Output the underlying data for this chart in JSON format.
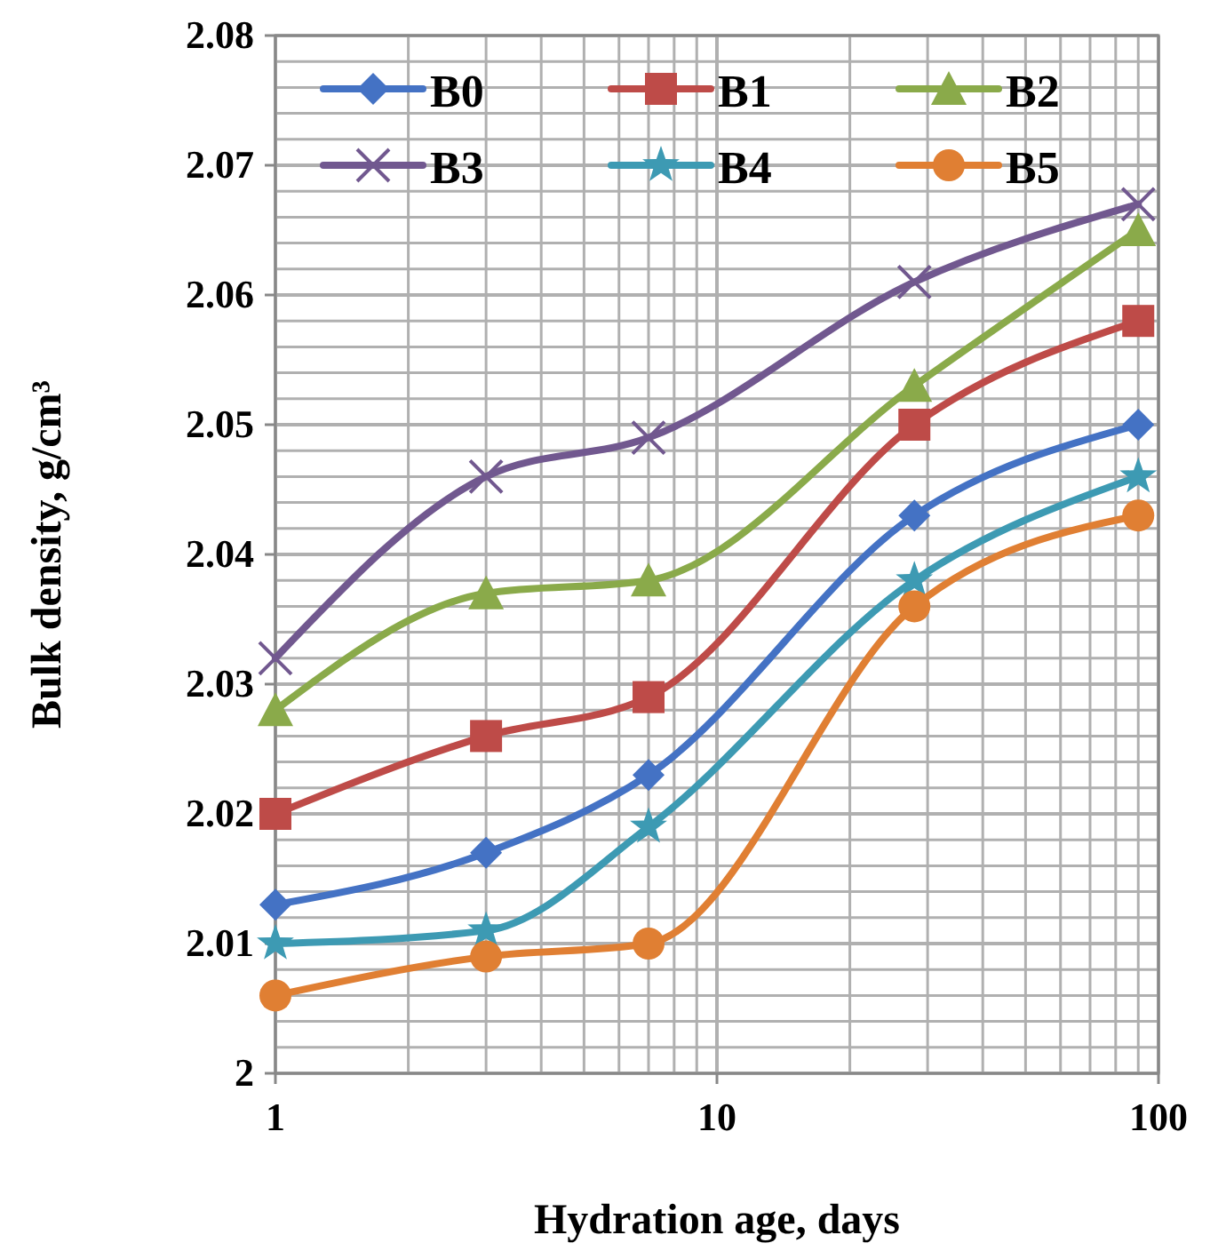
{
  "chart_data": {
    "type": "line",
    "xlabel": "Hydration age, days",
    "ylabel": "Bulk density, g/cm³",
    "log": "x",
    "x": [
      1,
      3,
      7,
      28,
      90
    ],
    "xlim": [
      1,
      100
    ],
    "xticks": [
      1,
      {
        "value": 2,
        "label": null
      },
      {
        "value": 3,
        "label": null
      },
      {
        "value": 4,
        "label": null
      },
      {
        "value": 5,
        "label": null
      },
      {
        "value": 6,
        "label": null
      },
      {
        "value": 7,
        "label": null
      },
      {
        "value": 8,
        "label": null
      },
      {
        "value": 9,
        "label": null
      },
      10,
      {
        "value": 20,
        "label": null
      },
      {
        "value": 30,
        "label": null
      },
      {
        "value": 40,
        "label": null
      },
      {
        "value": 50,
        "label": null
      },
      {
        "value": 60,
        "label": null
      },
      {
        "value": 70,
        "label": null
      },
      {
        "value": 80,
        "label": null
      },
      {
        "value": 90,
        "label": null
      },
      100
    ],
    "ylim": [
      2,
      2.08
    ],
    "yticks": [
      2,
      {
        "value": 2.002,
        "label": null
      },
      {
        "value": 2.004,
        "label": null
      },
      {
        "value": 2.006,
        "label": null
      },
      {
        "value": 2.008,
        "label": null
      },
      2.01,
      {
        "value": 2.012,
        "label": null
      },
      {
        "value": 2.014,
        "label": null
      },
      {
        "value": 2.016,
        "label": null
      },
      {
        "value": 2.018,
        "label": null
      },
      2.02,
      {
        "value": 2.022,
        "label": null
      },
      {
        "value": 2.024,
        "label": null
      },
      {
        "value": 2.026,
        "label": null
      },
      {
        "value": 2.028,
        "label": null
      },
      2.03,
      {
        "value": 2.032,
        "label": null
      },
      {
        "value": 2.034,
        "label": null
      },
      {
        "value": 2.036,
        "label": null
      },
      {
        "value": 2.038,
        "label": null
      },
      2.04,
      {
        "value": 2.042,
        "label": null
      },
      {
        "value": 2.044,
        "label": null
      },
      {
        "value": 2.046,
        "label": null
      },
      {
        "value": 2.048,
        "label": null
      },
      2.05,
      {
        "value": 2.052,
        "label": null
      },
      {
        "value": 2.054,
        "label": null
      },
      {
        "value": 2.056,
        "label": null
      },
      {
        "value": 2.058,
        "label": null
      },
      2.06,
      {
        "value": 2.062,
        "label": null
      },
      {
        "value": 2.064,
        "label": null
      },
      {
        "value": 2.066,
        "label": null
      },
      {
        "value": 2.068,
        "label": null
      },
      2.07,
      {
        "value": 2.072,
        "label": null
      },
      {
        "value": 2.074,
        "label": null
      },
      {
        "value": 2.076,
        "label": null
      },
      {
        "value": 2.078,
        "label": null
      },
      2.08
    ],
    "grid": true,
    "legend": "top",
    "line_style": "solid",
    "series": [
      {
        "name": "B0",
        "color": "#4472c4",
        "marker": "diamond",
        "values": [
          2.013,
          2.017,
          2.023,
          2.043,
          2.05
        ]
      },
      {
        "name": "B1",
        "color": "#be4b48",
        "marker": "square",
        "values": [
          2.02,
          2.026,
          2.029,
          2.05,
          2.058
        ]
      },
      {
        "name": "B2",
        "color": "#8aaa4a",
        "marker": "triangle",
        "values": [
          2.028,
          2.037,
          2.038,
          2.053,
          2.065
        ]
      },
      {
        "name": "B3",
        "color": "#71588f",
        "marker": "cross",
        "values": [
          2.032,
          2.046,
          2.049,
          2.061,
          2.067
        ]
      },
      {
        "name": "B4",
        "color": "#3d9ab3",
        "marker": "star",
        "values": [
          2.01,
          2.011,
          2.019,
          2.038,
          2.046
        ]
      },
      {
        "name": "B5",
        "color": "#e07f33",
        "marker": "circle",
        "values": [
          2.006,
          2.009,
          2.01,
          2.036,
          2.043
        ]
      }
    ]
  }
}
